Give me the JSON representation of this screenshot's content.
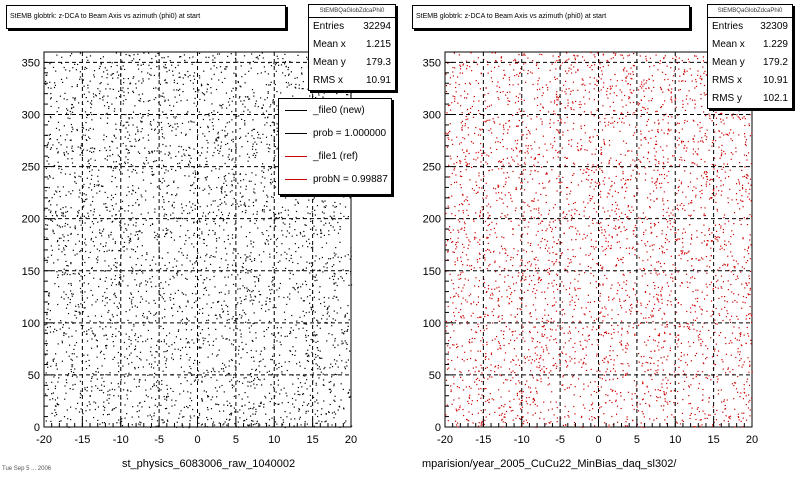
{
  "chart_data": [
    {
      "type": "scatter",
      "title": "StEMB globtrk: z-DCA to Beam Axis vs azimuth (phi0) at start",
      "x_ticks": [
        "-20",
        "-15",
        "-10",
        "-5",
        "0",
        "5",
        "10",
        "15",
        "20"
      ],
      "y_ticks": [
        "0",
        "50",
        "100",
        "150",
        "200",
        "250",
        "300",
        "350"
      ],
      "xlim": [
        -20,
        20
      ],
      "ylim": [
        0,
        360
      ],
      "grid": true,
      "point_color": "#000000",
      "stats": {
        "name": "StEMBQaGlobZdcaPhi0",
        "rows": [
          {
            "label": "Entries",
            "value": "32294"
          },
          {
            "label": "Mean x",
            "value": "1.215"
          },
          {
            "label": "Mean y",
            "value": "179.3"
          },
          {
            "label": "RMS x",
            "value": "10.91"
          }
        ]
      },
      "legend": {
        "entries": [
          {
            "label": "_file0 (new)",
            "color": "#000000"
          },
          {
            "label": "prob = 1.000000",
            "color": "#000000"
          },
          {
            "label": "_file1 (ref)",
            "color": "#cc0000"
          },
          {
            "label": "probN = 0.99887",
            "color": "#cc0000"
          }
        ]
      },
      "footer": "st_physics_6083006_raw_1040002"
    },
    {
      "type": "scatter",
      "title": "StEMB globtrk: z-DCA to Beam Axis vs azimuth (phi0) at start",
      "x_ticks": [
        "-20",
        "-15",
        "-10",
        "-5",
        "0",
        "5",
        "10",
        "15",
        "20"
      ],
      "y_ticks": [
        "0",
        "50",
        "100",
        "150",
        "200",
        "250",
        "300",
        "350"
      ],
      "xlim": [
        -20,
        20
      ],
      "ylim": [
        0,
        360
      ],
      "grid": true,
      "point_color": "#cc0000",
      "stats": {
        "name": "StEMBQaGlobZdcaPhi0",
        "rows": [
          {
            "label": "Entries",
            "value": "32309"
          },
          {
            "label": "Mean x",
            "value": "1.229"
          },
          {
            "label": "Mean y",
            "value": "179.2"
          },
          {
            "label": "RMS x",
            "value": "10.91"
          },
          {
            "label": "RMS y",
            "value": "102.1"
          }
        ]
      },
      "footer": "mparision/year_2005_CuCu22_MinBias_daq_sl302/"
    }
  ],
  "date_stamp": "Tue Sep 5 ... 2006"
}
